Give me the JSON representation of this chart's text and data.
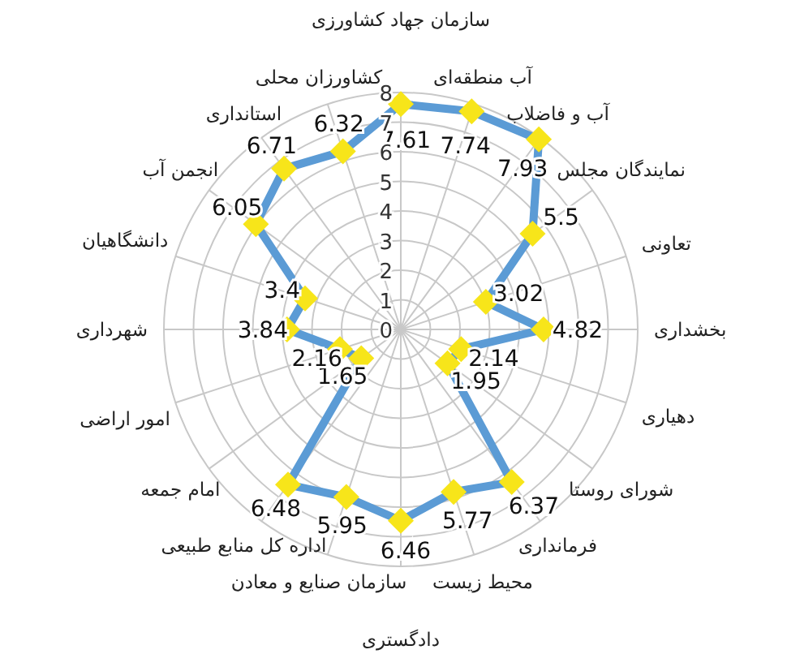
{
  "chart_data": {
    "type": "radar",
    "categories": [
      "سازمان جهاد کشاورزی",
      "آب منطقه‌ای",
      "آب و فاضلاب",
      "نمایندگان مجلس",
      "تعاونی",
      "بخشداری",
      "دهیاری",
      "شورای روستا",
      "فرمانداری",
      "محیط زیست",
      "دادگستری",
      "سازمان صنایع و معادن",
      "اداره کل منابع طبیعی",
      "امام جمعه",
      "امور اراضی",
      "شهرداری",
      "دانشگاهیان",
      "انجمن آب",
      "استانداری",
      "کشاورزان محلی"
    ],
    "series": [
      {
        "color": "#5b9bd5",
        "colors": [
          "#f7e51a",
          "#f7e51a",
          "#f7e51a",
          "#f7e51a",
          "#f7e51a",
          "#f7e51a",
          "#f7e51a",
          "#f7e51a",
          "#f7e51a",
          "#f7e51a",
          "#f7e51a",
          "#f7e51a",
          "#f7e51a",
          "#f7e51a",
          "#f7e51a",
          "#f7e51a",
          "#f7e51a",
          "#f7e51a",
          "#f7e51a",
          "#f7e51a"
        ],
        "values": [
          7.61,
          7.74,
          7.93,
          5.5,
          3.02,
          4.82,
          2.14,
          1.95,
          6.37,
          5.77,
          6.46,
          5.95,
          6.48,
          1.65,
          2.16,
          3.84,
          3.4,
          6.05,
          6.71,
          6.32
        ]
      }
    ],
    "ylim": [
      0,
      8
    ],
    "yticks": [
      0,
      1,
      2,
      3,
      4,
      5,
      6,
      7,
      8
    ],
    "grid": true,
    "marker": "diamond",
    "line_style": "solid",
    "data_labels": true
  }
}
